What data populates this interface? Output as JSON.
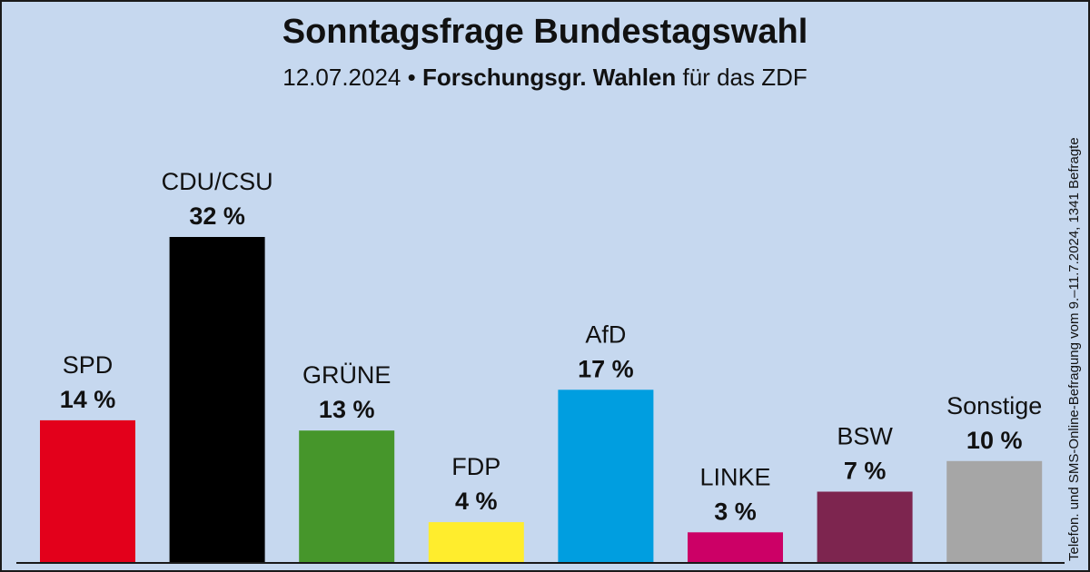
{
  "header": {
    "title": "Sonntagsfrage Bundestagswahl",
    "date": "12.07.2024",
    "separator": "•",
    "institute": "Forschungsgr. Wahlen",
    "client": "für das ZDF"
  },
  "side_note": "Telefon. und SMS-Online-Befragung vom 9.–11.7.2024, 1341 Befragte",
  "chart_data": {
    "type": "bar",
    "title": "Sonntagsfrage Bundestagswahl",
    "categories": [
      "SPD",
      "CDU/CSU",
      "GRÜNE",
      "FDP",
      "AfD",
      "LINKE",
      "BSW",
      "Sonstige"
    ],
    "values": [
      14,
      32,
      13,
      4,
      17,
      3,
      7,
      10
    ],
    "value_labels": [
      "14 %",
      "32 %",
      "13 %",
      "4 %",
      "17 %",
      "3 %",
      "7 %",
      "10 %"
    ],
    "colors": [
      "#e3001b",
      "#000000",
      "#46962b",
      "#ffed2d",
      "#009ee0",
      "#cc0066",
      "#7d254f",
      "#a6a6a6"
    ],
    "unit": "%",
    "ylim": [
      0,
      32
    ],
    "grid": false,
    "legend": "none"
  },
  "colors": {
    "background": "#c6d8ef",
    "text": "#111111",
    "axis": "#1a1a1a"
  }
}
